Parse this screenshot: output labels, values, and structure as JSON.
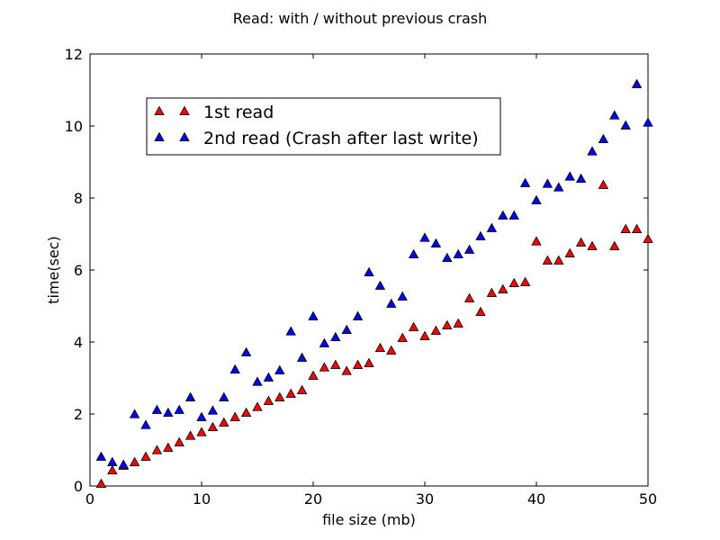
{
  "chart_data": {
    "type": "scatter",
    "title": "Read: with / without previous crash",
    "xlabel": "file size (mb)",
    "ylabel": "time(sec)",
    "xlim": [
      0,
      50
    ],
    "ylim": [
      0,
      12
    ],
    "xticks": [
      0,
      10,
      20,
      30,
      40,
      50
    ],
    "yticks": [
      0,
      2,
      4,
      6,
      8,
      10,
      12
    ],
    "grid": false,
    "legend_position": "upper-left",
    "marker": "triangle",
    "series": [
      {
        "name": "1st read",
        "color": "#ff0000",
        "x": [
          1,
          2,
          3,
          4,
          5,
          6,
          7,
          8,
          9,
          10,
          11,
          12,
          13,
          14,
          15,
          16,
          17,
          18,
          19,
          20,
          21,
          22,
          23,
          24,
          25,
          26,
          27,
          28,
          29,
          30,
          31,
          32,
          33,
          34,
          35,
          36,
          37,
          38,
          39,
          40,
          41,
          42,
          43,
          44,
          45,
          46,
          47,
          48,
          49,
          50
        ],
        "y": [
          0.05,
          0.42,
          0.55,
          0.65,
          0.8,
          0.98,
          1.05,
          1.2,
          1.38,
          1.48,
          1.62,
          1.75,
          1.9,
          2.02,
          2.18,
          2.35,
          2.45,
          2.55,
          2.65,
          3.05,
          3.28,
          3.35,
          3.18,
          3.35,
          3.4,
          3.82,
          3.75,
          4.1,
          4.4,
          4.15,
          4.3,
          4.45,
          4.5,
          5.2,
          4.82,
          5.35,
          5.45,
          5.62,
          5.65,
          6.78,
          6.25,
          6.25,
          6.45,
          6.75,
          6.65,
          8.35,
          6.65,
          7.12,
          7.12,
          6.85
        ]
      },
      {
        "name": "2nd read (Crash after last write)",
        "color": "#0000ff",
        "x": [
          1,
          2,
          3,
          4,
          5,
          6,
          7,
          8,
          9,
          10,
          11,
          12,
          13,
          14,
          15,
          16,
          17,
          18,
          19,
          20,
          21,
          22,
          23,
          24,
          25,
          26,
          27,
          28,
          29,
          30,
          31,
          32,
          33,
          34,
          35,
          36,
          37,
          38,
          39,
          40,
          41,
          42,
          43,
          44,
          45,
          46,
          47,
          48,
          49,
          50
        ],
        "y": [
          0.8,
          0.65,
          0.58,
          1.98,
          1.68,
          2.1,
          2.02,
          2.1,
          2.45,
          1.9,
          2.08,
          2.45,
          3.22,
          3.7,
          2.88,
          3.0,
          3.2,
          4.28,
          3.55,
          4.7,
          3.95,
          4.12,
          4.32,
          4.7,
          5.92,
          5.55,
          5.05,
          5.25,
          6.42,
          6.88,
          6.72,
          6.32,
          6.42,
          6.55,
          6.92,
          7.15,
          7.5,
          7.5,
          8.4,
          7.92,
          8.38,
          8.28,
          8.58,
          8.52,
          9.28,
          9.62,
          10.28,
          10.0,
          11.15,
          10.08
        ]
      }
    ]
  }
}
